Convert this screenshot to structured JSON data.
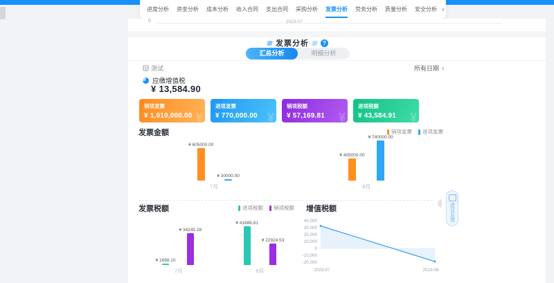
{
  "accent_color": "#1890ff",
  "nav": {
    "tabs": [
      {
        "label": "进度分析",
        "active": false
      },
      {
        "label": "资金分析",
        "active": false
      },
      {
        "label": "成本分析",
        "active": false
      },
      {
        "label": "收入合同",
        "active": false
      },
      {
        "label": "支出合同",
        "active": false
      },
      {
        "label": "采购分析",
        "active": false
      },
      {
        "label": "发票分析",
        "active": true
      },
      {
        "label": "劳务分析",
        "active": false
      },
      {
        "label": "质量分析",
        "active": false
      },
      {
        "label": "安全分析",
        "active": false
      }
    ]
  },
  "icons": {
    "collapse": "∨",
    "help": "?",
    "date_chevron": "∨",
    "watermark": "¥"
  },
  "fragment": {
    "zero": "0",
    "xlabel": "2023-07"
  },
  "header": {
    "title": "发票分析"
  },
  "view_tabs": [
    {
      "label": "汇总分析",
      "active": true
    },
    {
      "label": "明细分析",
      "active": false
    }
  ],
  "filter": {
    "project": "测试",
    "date_range": "所有日期"
  },
  "summary": {
    "label": "应缴增值税",
    "value": "¥ 13,584.90"
  },
  "kpi_cards": [
    {
      "label": "销项发票",
      "value": "¥ 1,010,000.00",
      "gradient": [
        "#ff8a1c",
        "#ffb45c"
      ]
    },
    {
      "label": "进项发票",
      "value": "¥ 770,000.00",
      "gradient": [
        "#1e97f2",
        "#4cc3fa"
      ]
    },
    {
      "label": "销项税额",
      "value": "¥ 57,169.81",
      "gradient": [
        "#8d2ae0",
        "#b05cf0"
      ]
    },
    {
      "label": "进项税额",
      "value": "¥ 43,584.91",
      "gradient": [
        "#12c185",
        "#3fdca8"
      ]
    }
  ],
  "chart_data": [
    {
      "type": "bar",
      "title": "发票金额",
      "categories": [
        "7月",
        "8月"
      ],
      "series": [
        {
          "name": "销项发票",
          "color": "#ff8f1f",
          "values": [
            605000,
            405000
          ],
          "labels": [
            "¥ 605000.00",
            "¥ 405000.00"
          ]
        },
        {
          "name": "进项发票",
          "color": "#2ea7f5",
          "values": [
            30000,
            740000
          ],
          "labels": [
            "¥ 30000.00",
            "¥ 740000.00"
          ]
        }
      ],
      "ylim": [
        0,
        740000
      ],
      "legend_position": "top-right",
      "grid": false
    },
    {
      "type": "bar",
      "title": "发票税额",
      "categories": [
        "7月",
        "8月"
      ],
      "series": [
        {
          "name": "进项税额",
          "color": "#2cc7b5",
          "values": [
            1698.1,
            41886.81
          ],
          "labels": [
            "¥ 1698.10",
            "¥ 41886.81"
          ]
        },
        {
          "name": "销项税额",
          "color": "#9b2ee0",
          "values": [
            34245.28,
            22924.53
          ],
          "labels": [
            "¥ 34245.28",
            "¥ 22924.53"
          ]
        }
      ],
      "ylim": [
        0,
        41886.81
      ],
      "legend_position": "top-right",
      "grid": false
    },
    {
      "type": "line",
      "title": "增值税额",
      "x": [
        "2023-07",
        "2023-08"
      ],
      "values": [
        32547.18,
        -18962.28
      ],
      "yticks": [
        40000,
        30000,
        20000,
        10000,
        0,
        -10000,
        -20000
      ],
      "ytick_labels": [
        "40,000",
        "30,000",
        "20,000",
        "10,000",
        "0",
        "-10,000",
        "-20,000"
      ],
      "ylim": [
        -20000,
        40000
      ],
      "color": "#3d9ef0",
      "area": true,
      "grid": false
    }
  ],
  "feedback": {
    "label": "建议反馈"
  }
}
